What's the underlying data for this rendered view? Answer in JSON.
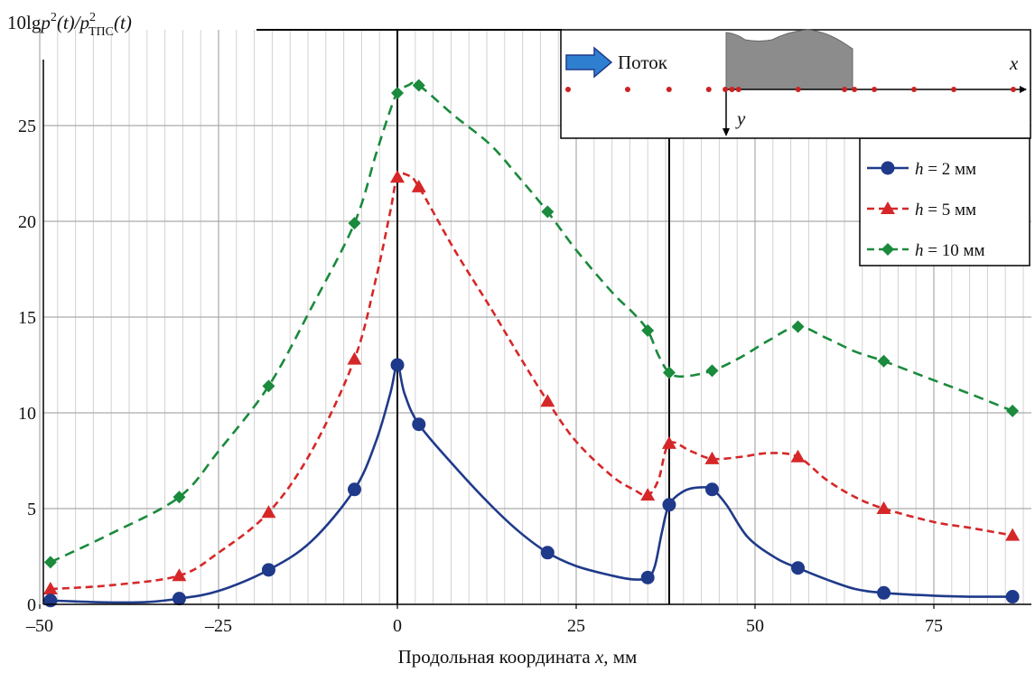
{
  "chart_data": {
    "type": "line",
    "title": "",
    "ylabel": "10lgp²(t)/p²ТПС(t)",
    "ylabel_parts": {
      "pre": "10lg",
      "p": "p",
      "sup1": "2",
      "paren1": "(t)/",
      "p2": "p",
      "sup2": "2",
      "sub2": "ТПС",
      "paren2": "(t)"
    },
    "xlabel": "Продольная координата x, мм",
    "xlabel_parts": {
      "pre": "Продольная координата ",
      "var": "x",
      "post": ", мм"
    },
    "xlim": [
      -50,
      88
    ],
    "ylim": [
      0,
      28
    ],
    "xticks": [
      -50,
      -25,
      0,
      25,
      50,
      75
    ],
    "xtick_labels": [
      "–50",
      "–25",
      "0",
      "25",
      "50",
      "75"
    ],
    "yticks": [
      0,
      5,
      10,
      15,
      20,
      25
    ],
    "ytick_labels": [
      "0",
      "5",
      "10",
      "15",
      "20",
      "25"
    ],
    "minor_grid_step_x": 2.5,
    "grid": true,
    "legend_position": "top-right",
    "vertical_markers": [
      0,
      38
    ],
    "series": [
      {
        "name": "h = 2 мм",
        "name_parts": {
          "var": "h",
          "rest": " = 2 мм"
        },
        "color": "#1f3a8a",
        "dash": "solid",
        "marker": "circle",
        "x": [
          -48.5,
          -30.5,
          -18,
          -6,
          0,
          3,
          21,
          35,
          38,
          44,
          56,
          68,
          86
        ],
        "y": [
          0.2,
          0.3,
          1.8,
          6.0,
          12.5,
          9.4,
          2.7,
          1.4,
          5.2,
          6.0,
          1.9,
          0.6,
          0.4
        ],
        "curve": [
          [
            -48.5,
            0.2
          ],
          [
            -45,
            0.15
          ],
          [
            -40,
            0.1
          ],
          [
            -35,
            0.12
          ],
          [
            -30.5,
            0.3
          ],
          [
            -25,
            0.7
          ],
          [
            -18,
            1.8
          ],
          [
            -12,
            3.3
          ],
          [
            -6,
            6.0
          ],
          [
            -3,
            8.5
          ],
          [
            -1,
            11.0
          ],
          [
            0,
            12.5
          ],
          [
            1,
            11.0
          ],
          [
            3,
            9.4
          ],
          [
            8,
            7.2
          ],
          [
            13,
            5.2
          ],
          [
            17,
            3.8
          ],
          [
            21,
            2.7
          ],
          [
            25,
            2.0
          ],
          [
            30,
            1.5
          ],
          [
            33,
            1.3
          ],
          [
            35,
            1.4
          ],
          [
            36,
            2.0
          ],
          [
            37,
            3.8
          ],
          [
            38,
            5.2
          ],
          [
            40,
            5.9
          ],
          [
            42,
            6.1
          ],
          [
            44,
            6.0
          ],
          [
            46,
            5.2
          ],
          [
            49,
            3.5
          ],
          [
            53,
            2.4
          ],
          [
            56,
            1.9
          ],
          [
            60,
            1.3
          ],
          [
            64,
            0.8
          ],
          [
            68,
            0.6
          ],
          [
            75,
            0.45
          ],
          [
            80,
            0.4
          ],
          [
            86,
            0.4
          ]
        ]
      },
      {
        "name": "h = 5 мм",
        "name_parts": {
          "var": "h",
          "rest": " = 5 мм"
        },
        "color": "#d62728",
        "dash": "dashed",
        "marker": "triangle",
        "x": [
          -48.5,
          -30.5,
          -18,
          -6,
          0,
          3,
          21,
          35,
          38,
          44,
          56,
          68,
          86
        ],
        "y": [
          0.8,
          1.5,
          4.8,
          12.8,
          22.3,
          21.8,
          10.6,
          5.7,
          8.4,
          7.6,
          7.7,
          5.0,
          3.6
        ],
        "curve": [
          [
            -48.5,
            0.8
          ],
          [
            -40,
            1.0
          ],
          [
            -30.5,
            1.5
          ],
          [
            -25,
            2.7
          ],
          [
            -18,
            4.8
          ],
          [
            -12,
            8.0
          ],
          [
            -6,
            12.8
          ],
          [
            -3,
            17.0
          ],
          [
            -1,
            20.5
          ],
          [
            0,
            22.3
          ],
          [
            1.5,
            22.4
          ],
          [
            3,
            21.8
          ],
          [
            8,
            18.5
          ],
          [
            13,
            15.5
          ],
          [
            17,
            13.0
          ],
          [
            21,
            10.6
          ],
          [
            25,
            8.5
          ],
          [
            30,
            6.7
          ],
          [
            33,
            6.0
          ],
          [
            35,
            5.7
          ],
          [
            36.5,
            6.5
          ],
          [
            38,
            8.4
          ],
          [
            41,
            8.0
          ],
          [
            44,
            7.6
          ],
          [
            48,
            7.7
          ],
          [
            52,
            7.9
          ],
          [
            56,
            7.7
          ],
          [
            60,
            6.5
          ],
          [
            64,
            5.6
          ],
          [
            68,
            5.0
          ],
          [
            75,
            4.3
          ],
          [
            80,
            4.0
          ],
          [
            86,
            3.6
          ]
        ]
      },
      {
        "name": "h = 10 мм",
        "name_parts": {
          "var": "h",
          "rest": " = 10 мм"
        },
        "color": "#1a8a3c",
        "dash": "dashed",
        "marker": "diamond",
        "x": [
          -48.5,
          -30.5,
          -18,
          -6,
          0,
          3,
          21,
          35,
          38,
          44,
          56,
          68,
          86
        ],
        "y": [
          2.2,
          5.6,
          11.4,
          19.9,
          26.7,
          27.1,
          20.5,
          14.3,
          12.1,
          12.2,
          14.5,
          12.7,
          10.1
        ],
        "curve": [
          [
            -48.5,
            2.2
          ],
          [
            -40,
            3.7
          ],
          [
            -30.5,
            5.6
          ],
          [
            -25,
            8.0
          ],
          [
            -18,
            11.4
          ],
          [
            -12,
            15.5
          ],
          [
            -6,
            19.9
          ],
          [
            -3,
            23.5
          ],
          [
            -1,
            25.8
          ],
          [
            0,
            26.7
          ],
          [
            1.5,
            27.1
          ],
          [
            3,
            27.1
          ],
          [
            8,
            25.5
          ],
          [
            13,
            24.0
          ],
          [
            17,
            22.3
          ],
          [
            21,
            20.5
          ],
          [
            25,
            18.5
          ],
          [
            30,
            16.3
          ],
          [
            33,
            15.2
          ],
          [
            35,
            14.3
          ],
          [
            36.5,
            13.0
          ],
          [
            38,
            12.1
          ],
          [
            40,
            11.9
          ],
          [
            44,
            12.2
          ],
          [
            48,
            12.9
          ],
          [
            52,
            13.8
          ],
          [
            56,
            14.5
          ],
          [
            60,
            13.9
          ],
          [
            64,
            13.2
          ],
          [
            68,
            12.7
          ],
          [
            75,
            11.7
          ],
          [
            80,
            11.0
          ],
          [
            86,
            10.1
          ]
        ]
      }
    ],
    "inset": {
      "label_flow": "Поток",
      "label_x": "x",
      "label_y": "y",
      "sensor_color": "#cc2222",
      "sensor_x": [
        -48.5,
        -30.5,
        -18,
        -6,
        -1,
        1,
        3,
        21,
        35,
        38,
        44,
        56,
        68,
        86
      ]
    }
  }
}
